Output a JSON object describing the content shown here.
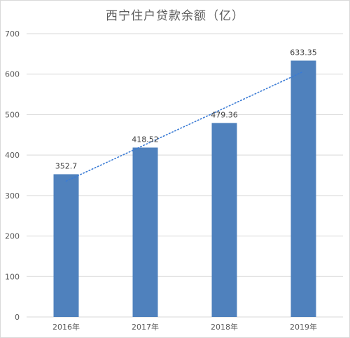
{
  "chart_data": {
    "type": "bar",
    "title": "西宁住户贷款余额（亿）",
    "categories": [
      "2016年",
      "2017年",
      "2018年",
      "2019年"
    ],
    "values": [
      352.7,
      418.52,
      479.36,
      633.35
    ],
    "data_labels": [
      "352.7",
      "418.52",
      "479.36",
      "633.35"
    ],
    "ylim": [
      0,
      700
    ],
    "yticks": [
      0,
      100,
      200,
      300,
      400,
      500,
      600,
      700
    ],
    "xlabel": "",
    "ylabel": "",
    "grid": true,
    "trendline": {
      "type": "linear",
      "style": "dotted"
    },
    "colors": {
      "bar": "#4f81bd",
      "trendline": "#3a7bd5",
      "grid": "#d9d9d9",
      "text": "#595959"
    }
  }
}
